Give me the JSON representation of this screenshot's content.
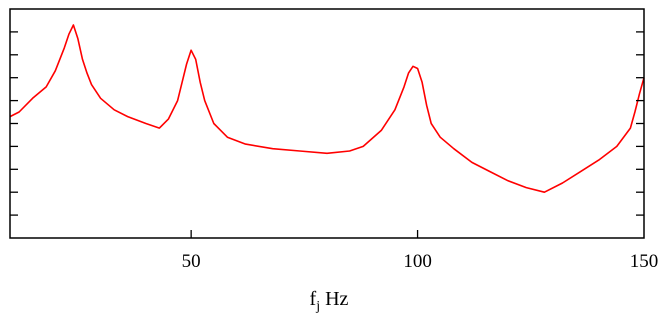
{
  "chart_data": {
    "type": "line",
    "title": "",
    "xlabel": {
      "main": "f",
      "subscript": "j",
      "unit": "Hz"
    },
    "ylabel": "",
    "xlim": [
      10,
      150
    ],
    "ylim": [
      0,
      10
    ],
    "x_ticks": [
      50,
      100,
      150
    ],
    "x_tick_labels": [
      "50",
      "100",
      "150"
    ],
    "y_tick_count": 9,
    "grid": false,
    "series": [
      {
        "color": "#ff0000",
        "x": [
          10,
          12,
          15,
          18,
          20,
          22,
          23,
          24,
          25,
          26,
          27,
          28,
          30,
          33,
          36,
          40,
          43,
          45,
          47,
          48,
          49,
          50,
          51,
          52,
          53,
          55,
          58,
          62,
          68,
          74,
          80,
          85,
          88,
          92,
          95,
          97,
          98,
          99,
          100,
          101,
          102,
          103,
          105,
          108,
          112,
          116,
          120,
          124,
          128,
          132,
          136,
          140,
          144,
          147,
          148,
          149,
          150
        ],
        "y": [
          5.3,
          5.5,
          6.1,
          6.6,
          7.3,
          8.3,
          8.9,
          9.3,
          8.7,
          7.8,
          7.2,
          6.7,
          6.1,
          5.6,
          5.3,
          5.0,
          4.8,
          5.2,
          6.0,
          6.8,
          7.6,
          8.2,
          7.8,
          6.8,
          6.0,
          5.0,
          4.4,
          4.1,
          3.9,
          3.8,
          3.7,
          3.8,
          4.0,
          4.7,
          5.6,
          6.6,
          7.2,
          7.5,
          7.4,
          6.8,
          5.8,
          5.0,
          4.4,
          3.9,
          3.3,
          2.9,
          2.5,
          2.2,
          2.0,
          2.4,
          2.9,
          3.4,
          4.0,
          4.8,
          5.5,
          6.3,
          7.0
        ]
      }
    ]
  }
}
